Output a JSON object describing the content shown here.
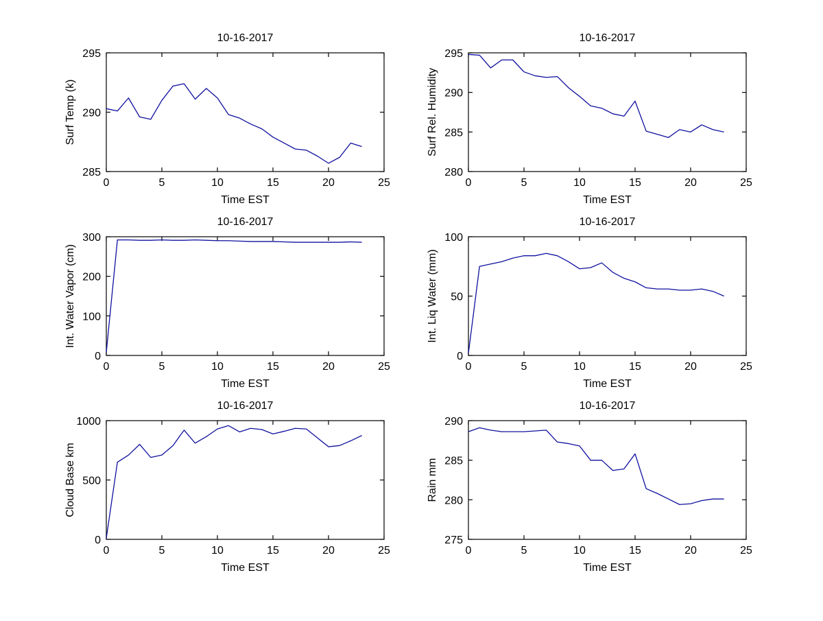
{
  "figure": {
    "background": "#ffffff",
    "axis_color": "#000000",
    "line_color": "#0f0f9e",
    "tick_label_fontsize": 16,
    "title_fontsize": 16,
    "axis_label_fontsize": 16
  },
  "chart_data": [
    {
      "type": "line",
      "title": "10-16-2017",
      "xlabel": "Time EST",
      "ylabel": "Surf Temp (k)",
      "xlim": [
        0,
        25
      ],
      "ylim": [
        285,
        295
      ],
      "xticks": [
        0,
        5,
        10,
        15,
        20,
        25
      ],
      "yticks": [
        285,
        290,
        295
      ],
      "grid": false,
      "legend": null,
      "x": [
        0,
        1,
        2,
        3,
        4,
        5,
        6,
        7,
        8,
        9,
        10,
        11,
        12,
        13,
        14,
        15,
        16,
        17,
        18,
        19,
        20,
        21,
        22,
        23
      ],
      "y": [
        290.3,
        290.1,
        291.2,
        289.6,
        289.4,
        291.0,
        292.2,
        292.4,
        291.1,
        292.0,
        291.2,
        289.8,
        289.5,
        289.0,
        288.6,
        287.9,
        287.4,
        286.9,
        286.8,
        286.3,
        285.7,
        286.2,
        287.4,
        287.1
      ]
    },
    {
      "type": "line",
      "title": "10-16-2017",
      "xlabel": "Time EST",
      "ylabel": "Surf Rel. Humidity",
      "xlim": [
        0,
        25
      ],
      "ylim": [
        280,
        295
      ],
      "xticks": [
        0,
        5,
        10,
        15,
        20,
        25
      ],
      "yticks": [
        280,
        285,
        290,
        295
      ],
      "grid": false,
      "legend": null,
      "x": [
        0,
        1,
        2,
        3,
        4,
        5,
        6,
        7,
        8,
        9,
        10,
        11,
        12,
        13,
        14,
        15,
        16,
        17,
        18,
        19,
        20,
        21,
        22,
        23
      ],
      "y": [
        294.8,
        294.7,
        293.1,
        294.1,
        294.1,
        292.6,
        292.1,
        291.9,
        292.0,
        290.6,
        289.5,
        288.3,
        288.0,
        287.3,
        287.0,
        288.9,
        285.1,
        284.7,
        284.3,
        285.3,
        285.0,
        285.9,
        285.3,
        285.0
      ]
    },
    {
      "type": "line",
      "title": "10-16-2017",
      "xlabel": "Time EST",
      "ylabel": "Int. Water Vapor (cm)",
      "xlim": [
        0,
        25
      ],
      "ylim": [
        0,
        300
      ],
      "xticks": [
        0,
        5,
        10,
        15,
        20,
        25
      ],
      "yticks": [
        0,
        100,
        200,
        300
      ],
      "grid": false,
      "legend": null,
      "x": [
        0,
        1,
        2,
        3,
        4,
        5,
        6,
        7,
        8,
        9,
        10,
        11,
        12,
        13,
        14,
        15,
        16,
        17,
        18,
        19,
        20,
        21,
        22,
        23
      ],
      "y": [
        8,
        292,
        292,
        291,
        291,
        292,
        291,
        291,
        292,
        291,
        290,
        290,
        289,
        288,
        288,
        288,
        287,
        286,
        286,
        286,
        286,
        286,
        287,
        286
      ]
    },
    {
      "type": "line",
      "title": "10-16-2017",
      "xlabel": "Time EST",
      "ylabel": "Int. Liq Water (mm)",
      "xlim": [
        0,
        25
      ],
      "ylim": [
        0,
        100
      ],
      "xticks": [
        0,
        5,
        10,
        15,
        20,
        25
      ],
      "yticks": [
        0,
        50,
        100
      ],
      "grid": false,
      "legend": null,
      "x": [
        0,
        1,
        2,
        3,
        4,
        5,
        6,
        7,
        8,
        9,
        10,
        11,
        12,
        13,
        14,
        15,
        16,
        17,
        18,
        19,
        20,
        21,
        22,
        23
      ],
      "y": [
        2,
        75,
        77,
        79,
        82,
        84,
        84,
        86,
        84,
        79,
        73,
        74,
        78,
        70,
        65,
        62,
        57,
        56,
        56,
        55,
        55,
        56,
        54,
        50
      ]
    },
    {
      "type": "line",
      "title": "10-16-2017",
      "xlabel": "Time EST",
      "ylabel": "Cloud Base km",
      "xlim": [
        0,
        25
      ],
      "ylim": [
        0,
        1000
      ],
      "xticks": [
        0,
        5,
        10,
        15,
        20,
        25
      ],
      "yticks": [
        0,
        500,
        1000
      ],
      "grid": false,
      "legend": null,
      "x": [
        0,
        1,
        2,
        3,
        4,
        5,
        6,
        7,
        8,
        9,
        10,
        11,
        12,
        13,
        14,
        15,
        16,
        17,
        18,
        19,
        20,
        21,
        22,
        23
      ],
      "y": [
        10,
        650,
        710,
        800,
        690,
        710,
        790,
        920,
        810,
        865,
        930,
        958,
        905,
        935,
        925,
        888,
        910,
        935,
        930,
        855,
        780,
        790,
        830,
        875
      ]
    },
    {
      "type": "line",
      "title": "10-16-2017",
      "xlabel": "Time EST",
      "ylabel": "Rain mm",
      "xlim": [
        0,
        25
      ],
      "ylim": [
        275,
        290
      ],
      "xticks": [
        0,
        5,
        10,
        15,
        20,
        25
      ],
      "yticks": [
        275,
        280,
        285,
        290
      ],
      "grid": false,
      "legend": null,
      "x": [
        0,
        1,
        2,
        3,
        4,
        5,
        6,
        7,
        8,
        9,
        10,
        11,
        12,
        13,
        14,
        15,
        16,
        17,
        18,
        19,
        20,
        21,
        22,
        23
      ],
      "y": [
        288.6,
        289.1,
        288.8,
        288.6,
        288.6,
        288.6,
        288.7,
        288.8,
        287.3,
        287.1,
        286.8,
        285.0,
        285.0,
        283.7,
        283.9,
        285.8,
        281.4,
        280.8,
        280.1,
        279.4,
        279.5,
        279.9,
        280.1,
        280.1
      ]
    }
  ]
}
